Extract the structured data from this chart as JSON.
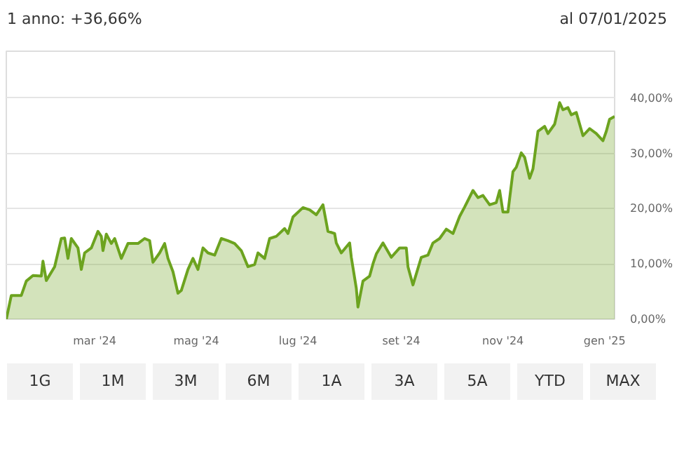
{
  "chart_data": {
    "type": "area",
    "title": "1 anno: +36,66%",
    "subtitle": "al 07/01/2025",
    "x": [
      "2024-01-08",
      "2024-01-11",
      "2024-01-17",
      "2024-01-20",
      "2024-01-24",
      "2024-01-29",
      "2024-01-30",
      "2024-02-01",
      "2024-02-06",
      "2024-02-10",
      "2024-02-12",
      "2024-02-14",
      "2024-02-16",
      "2024-02-20",
      "2024-02-22",
      "2024-02-24",
      "2024-02-28",
      "2024-03-03",
      "2024-03-05",
      "2024-03-06",
      "2024-03-08",
      "2024-03-11",
      "2024-03-13",
      "2024-03-17",
      "2024-03-21",
      "2024-03-27",
      "2024-03-31",
      "2024-04-03",
      "2024-04-05",
      "2024-04-09",
      "2024-04-12",
      "2024-04-14",
      "2024-04-17",
      "2024-04-20",
      "2024-04-22",
      "2024-04-26",
      "2024-04-29",
      "2024-05-02",
      "2024-05-05",
      "2024-05-08",
      "2024-05-12",
      "2024-05-16",
      "2024-05-20",
      "2024-05-24",
      "2024-05-28",
      "2024-06-01",
      "2024-06-05",
      "2024-06-07",
      "2024-06-11",
      "2024-06-14",
      "2024-06-18",
      "2024-06-23",
      "2024-06-25",
      "2024-06-28",
      "2024-07-04",
      "2024-07-08",
      "2024-07-12",
      "2024-07-16",
      "2024-07-19",
      "2024-07-23",
      "2024-07-24",
      "2024-07-27",
      "2024-08-01",
      "2024-08-02",
      "2024-08-05",
      "2024-08-06",
      "2024-08-09",
      "2024-08-13",
      "2024-08-15",
      "2024-08-17",
      "2024-08-21",
      "2024-08-26",
      "2024-08-31",
      "2024-09-04",
      "2024-09-05",
      "2024-09-08",
      "2024-09-13",
      "2024-09-17",
      "2024-09-20",
      "2024-09-24",
      "2024-09-28",
      "2024-10-02",
      "2024-10-06",
      "2024-10-09",
      "2024-10-14",
      "2024-10-17",
      "2024-10-20",
      "2024-10-24",
      "2024-10-28",
      "2024-10-30",
      "2024-11-01",
      "2024-11-04",
      "2024-11-07",
      "2024-11-09",
      "2024-11-12",
      "2024-11-14",
      "2024-11-17",
      "2024-11-19",
      "2024-11-22",
      "2024-11-26",
      "2024-11-28",
      "2024-12-02",
      "2024-12-05",
      "2024-12-07",
      "2024-12-10",
      "2024-12-12",
      "2024-12-15",
      "2024-12-19",
      "2024-12-23",
      "2024-12-27",
      "2024-12-31",
      "2025-01-02",
      "2025-01-04",
      "2025-01-07"
    ],
    "series": [
      {
        "color": "#6ca31f",
        "values": [
          0,
          4.3,
          4.3,
          6.9,
          7.9,
          7.8,
          10.5,
          7,
          9.5,
          14.6,
          14.7,
          11,
          14.6,
          12.9,
          9,
          12,
          12.9,
          15.9,
          15,
          12.4,
          15.4,
          13.7,
          14.6,
          11,
          13.7,
          13.7,
          14.6,
          14.2,
          10.3,
          12,
          13.7,
          11,
          8.6,
          4.7,
          5.2,
          9,
          11,
          9,
          12.9,
          12,
          11.6,
          14.6,
          14.2,
          13.7,
          12.4,
          9.5,
          9.9,
          12,
          11,
          14.6,
          15,
          16.4,
          15.5,
          18.5,
          20.2,
          19.8,
          18.9,
          20.7,
          15.9,
          15.5,
          13.8,
          12,
          13.8,
          11.2,
          5.6,
          2.2,
          6.9,
          7.8,
          10,
          11.8,
          13.8,
          11.2,
          12.9,
          12.9,
          9.5,
          6.2,
          11.2,
          11.6,
          13.8,
          14.6,
          16.3,
          15.5,
          18.6,
          20.3,
          23.3,
          22,
          22.4,
          20.7,
          21.1,
          23.3,
          19.4,
          19.4,
          26.7,
          27.5,
          30.1,
          29.3,
          25.5,
          27.2,
          34,
          34.9,
          33.6,
          35.3,
          39.2,
          37.9,
          38.3,
          37,
          37.4,
          33.2,
          34.5,
          33.6,
          32.3,
          34,
          36.2,
          36.7
        ]
      }
    ],
    "xlim": [
      "2024-01-08",
      "2025-01-07"
    ],
    "xticks": [
      {
        "value": "2024-03-01",
        "label": "mar '24"
      },
      {
        "value": "2024-05-01",
        "label": "mag '24"
      },
      {
        "value": "2024-07-01",
        "label": "lug '24"
      },
      {
        "value": "2024-09-01",
        "label": "set '24"
      },
      {
        "value": "2024-11-01",
        "label": "nov '24"
      },
      {
        "value": "2025-01-01",
        "label": "gen '25"
      }
    ],
    "ylim": [
      0,
      48.5
    ],
    "yticks": [
      {
        "value": 0,
        "label": "0,00%"
      },
      {
        "value": 10,
        "label": "10,00%"
      },
      {
        "value": 20,
        "label": "20,00%"
      },
      {
        "value": 30,
        "label": "30,00%"
      },
      {
        "value": 40,
        "label": "40,00%"
      }
    ],
    "grid": true,
    "annotations": [
      "1G",
      "1M",
      "3M",
      "6M",
      "1A",
      "3A",
      "5A",
      "YTD",
      "MAX"
    ]
  }
}
